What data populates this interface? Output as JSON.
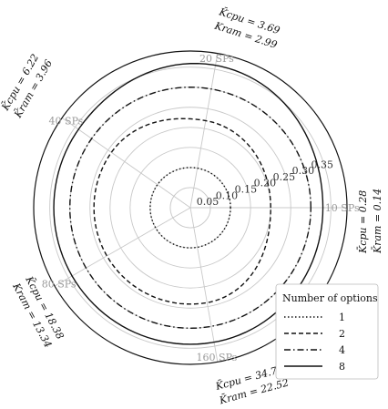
{
  "chart_data": {
    "type": "polar",
    "radial_ticks": [
      "0.05",
      "0.10",
      "0.15",
      "0.20",
      "0.25",
      "0.30",
      "0.35"
    ],
    "radial_tick_values": [
      0.05,
      0.1,
      0.15,
      0.2,
      0.25,
      0.3,
      0.35
    ],
    "rmax": 0.39,
    "angular_labels": [
      {
        "label": "10 SPs",
        "angle_deg": 0
      },
      {
        "label": "20 SPs",
        "angle_deg": 80
      },
      {
        "label": "40 SPs",
        "angle_deg": 145
      },
      {
        "label": "80 SPs",
        "angle_deg": 210
      },
      {
        "label": "160 SPs",
        "angle_deg": 280
      }
    ],
    "legend": {
      "title": "Number of options",
      "position": "lower-right"
    },
    "series": [
      {
        "name": "1",
        "style": "dotted",
        "r": [
          0.1,
          0.1,
          0.1,
          0.1,
          0.1,
          0.1
        ]
      },
      {
        "name": "2",
        "style": "dashed",
        "r": [
          0.2,
          0.22,
          0.24,
          0.24,
          0.24,
          0.2
        ]
      },
      {
        "name": "4",
        "style": "dashdot",
        "r": [
          0.3,
          0.3,
          0.3,
          0.3,
          0.3,
          0.3
        ]
      },
      {
        "name": "8",
        "style": "solid",
        "r": [
          0.33,
          0.36,
          0.34,
          0.34,
          0.34,
          0.33
        ]
      }
    ],
    "annotations": [
      {
        "cpu": "̄K_cpu = 3.69",
        "ram": "K_ram = 2.99"
      },
      {
        "cpu": "̄K_cpu = 6.22",
        "ram": "̄K_ram = 3.96"
      },
      {
        "cpu": "̄K_cpu = 0.28",
        "ram": "̄K_ram = 0.14"
      },
      {
        "cpu": "̄K_cpu = 18.38",
        "ram": "K_ram = 13.34"
      },
      {
        "cpu": "̄K_cpu = 34.71",
        "ram": "̄K_ram = 22.52"
      }
    ]
  },
  "display": {
    "ann_20": {
      "cpu": "K̄cpu = 3.69",
      "ram": "Kram = 2.99"
    },
    "ann_40": {
      "cpu": "K̄cpu = 6.22",
      "ram": "K̄ram = 3.96"
    },
    "ann_10": {
      "cpu": "K̄cpu = 0.28",
      "ram": "K̄ram = 0.14"
    },
    "ann_80": {
      "cpu": "K̄cpu = 18.38",
      "ram": "Kram = 13.34"
    },
    "ann_160": {
      "cpu": "K̄cpu = 34.71",
      "ram": "K̄ram = 22.52"
    }
  }
}
